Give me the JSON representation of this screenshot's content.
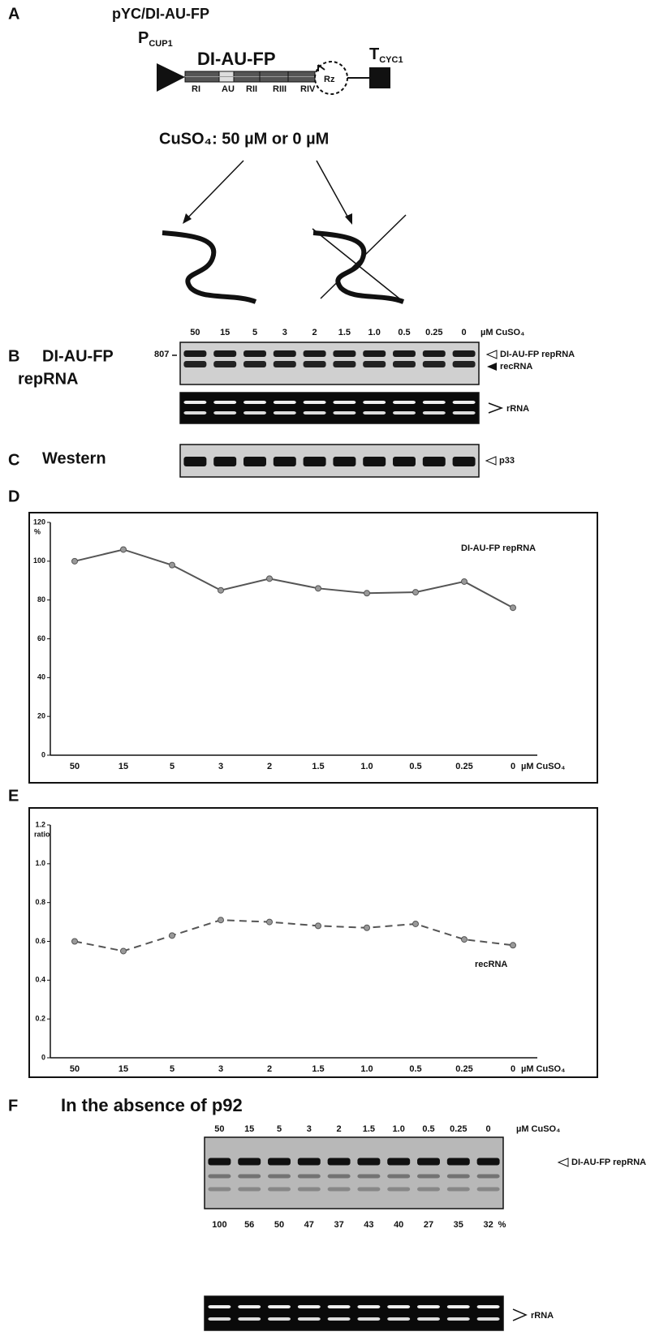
{
  "panel_a": {
    "label": "A",
    "title": "pYC/DI-AU-FP",
    "promoter": "P",
    "promoter_sub": "CUP1",
    "construct": "DI-AU-FP",
    "regions": [
      "RI",
      "AU",
      "RII",
      "RIII",
      "RIV"
    ],
    "ribozyme": "Rz",
    "terminator": "T",
    "terminator_sub": "CYC1",
    "condition": "CuSO₄: 50 µM  or 0 µM"
  },
  "panel_b": {
    "label": "B",
    "title_lines": [
      "DI-AU-FP",
      "repRNA"
    ],
    "lanes": [
      "50",
      "15",
      "5",
      "3",
      "2",
      "1.5",
      "1.0",
      "0.5",
      "0.25",
      "0"
    ],
    "unit": "µM CuSO₄",
    "marker": "807",
    "bands": [
      "DI-AU-FP repRNA",
      "recRNA"
    ],
    "loading": "rRNA"
  },
  "panel_c": {
    "label": "C",
    "title": "Western",
    "band": "p33"
  },
  "panel_d": {
    "label": "D"
  },
  "panel_e": {
    "label": "E"
  },
  "chart_data": [
    {
      "type": "line",
      "y_label": "%",
      "x_label": "µM CuSO₄",
      "categories": [
        "50",
        "15",
        "5",
        "3",
        "2",
        "1.5",
        "1.0",
        "0.5",
        "0.25",
        "0"
      ],
      "series": [
        {
          "name": "DI-AU-FP repRNA",
          "color": "#555555",
          "dashed": false,
          "values": [
            100,
            106,
            98,
            85,
            91,
            86,
            83.5,
            84,
            89.5,
            76
          ]
        }
      ],
      "ylim": [
        0,
        120
      ],
      "yticks": [
        0,
        20,
        40,
        60,
        80,
        100,
        120
      ]
    },
    {
      "type": "line",
      "y_label": "ratio",
      "x_label": "µM CuSO₄",
      "categories": [
        "50",
        "15",
        "5",
        "3",
        "2",
        "1.5",
        "1.0",
        "0.5",
        "0.25",
        "0"
      ],
      "series": [
        {
          "name": "recRNA",
          "color": "#555555",
          "dashed": true,
          "values": [
            0.6,
            0.55,
            0.63,
            0.71,
            0.7,
            0.68,
            0.67,
            0.69,
            0.61,
            0.58
          ]
        }
      ],
      "ylim": [
        0,
        1.2
      ],
      "yticks": [
        0,
        0.2,
        0.4,
        0.6,
        0.8,
        {
          "value": 1,
          "label": "1.0"
        },
        1.2
      ]
    }
  ],
  "panel_f": {
    "label": "F",
    "title": "In the absence of p92",
    "lanes": [
      "50",
      "15",
      "5",
      "3",
      "2",
      "1.5",
      "1.0",
      "0.5",
      "0.25",
      "0"
    ],
    "unit": "µM CuSO₄",
    "band": "DI-AU-FP repRNA",
    "quantification": [
      100,
      56,
      50,
      47,
      37,
      43,
      40,
      27,
      35,
      32
    ],
    "quant_unit": "%",
    "loading": "rRNA"
  }
}
